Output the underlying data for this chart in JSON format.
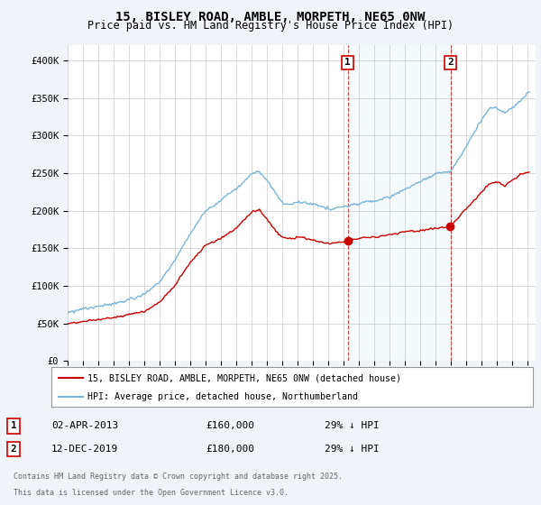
{
  "title": "15, BISLEY ROAD, AMBLE, MORPETH, NE65 0NW",
  "subtitle": "Price paid vs. HM Land Registry's House Price Index (HPI)",
  "ylabel_ticks": [
    "£0",
    "£50K",
    "£100K",
    "£150K",
    "£200K",
    "£250K",
    "£300K",
    "£350K",
    "£400K"
  ],
  "ytick_values": [
    0,
    50000,
    100000,
    150000,
    200000,
    250000,
    300000,
    350000,
    400000
  ],
  "ylim": [
    0,
    420000
  ],
  "hpi_color": "#7ab4d8",
  "price_color": "#cc0000",
  "annotation1_date": "02-APR-2013",
  "annotation1_price": "£160,000",
  "annotation1_hpi": "29% ↓ HPI",
  "annotation1_label": "1",
  "annotation1_year": 2013.25,
  "annotation1_value": 160000,
  "annotation2_date": "12-DEC-2019",
  "annotation2_price": "£180,000",
  "annotation2_hpi": "29% ↓ HPI",
  "annotation2_label": "2",
  "annotation2_year": 2019.95,
  "annotation2_value": 180000,
  "legend_label1": "15, BISLEY ROAD, AMBLE, MORPETH, NE65 0NW (detached house)",
  "legend_label2": "HPI: Average price, detached house, Northumberland",
  "footer1": "Contains HM Land Registry data © Crown copyright and database right 2025.",
  "footer2": "This data is licensed under the Open Government Licence v3.0.",
  "background_color": "#f0f4f8",
  "plot_bg_color": "#ffffff",
  "xstart": 1995,
  "xend": 2025
}
